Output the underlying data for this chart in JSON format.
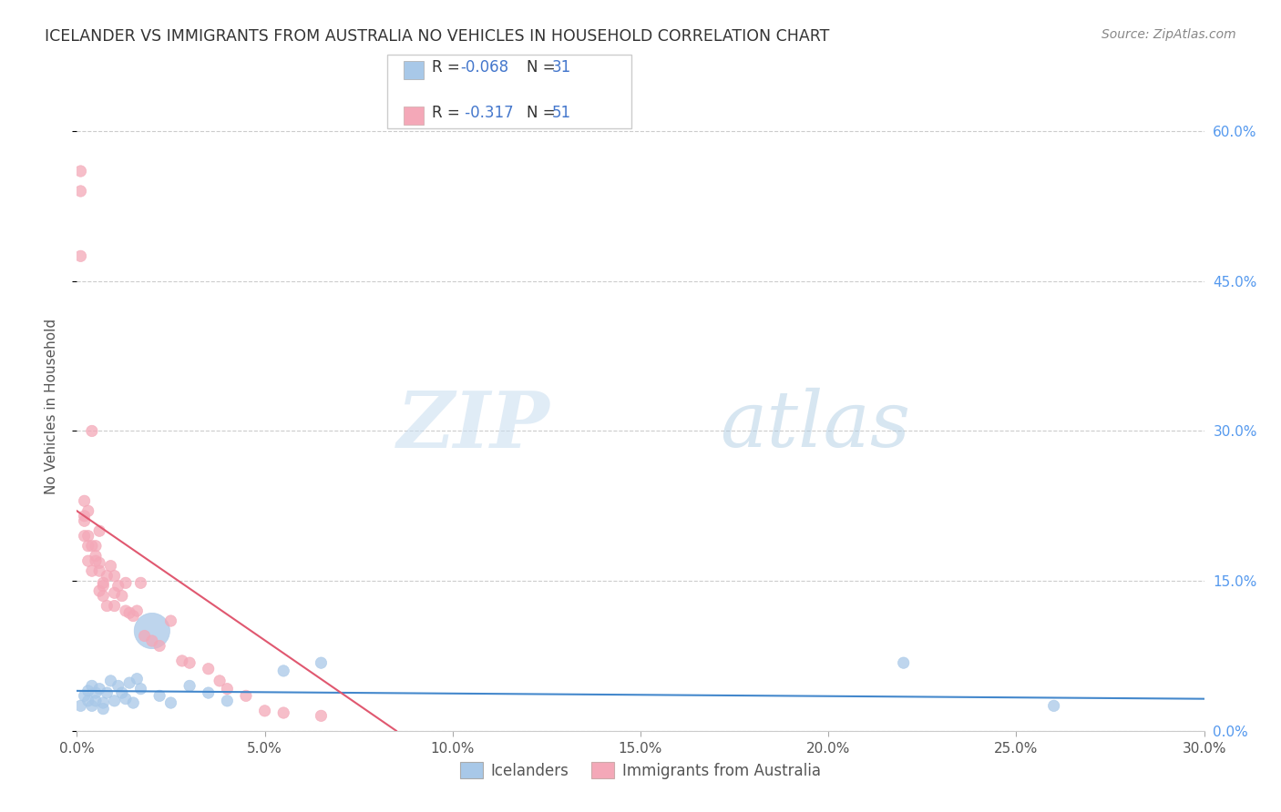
{
  "title": "ICELANDER VS IMMIGRANTS FROM AUSTRALIA NO VEHICLES IN HOUSEHOLD CORRELATION CHART",
  "source": "Source: ZipAtlas.com",
  "xlim": [
    0.0,
    0.3
  ],
  "ylim": [
    0.0,
    0.65
  ],
  "ylabel": "No Vehicles in Household",
  "watermark_zip": "ZIP",
  "watermark_atlas": "atlas",
  "legend_blue_r": "R = -0.068",
  "legend_blue_n": "N = 31",
  "legend_pink_r": "R =  -0.317",
  "legend_pink_n": "N = 51",
  "blue_color": "#A8C8E8",
  "pink_color": "#F4A8B8",
  "trendline_blue_color": "#4488CC",
  "trendline_pink_color": "#E05870",
  "legend_text_color": "#4477CC",
  "blue_scatter_x": [
    0.001,
    0.002,
    0.003,
    0.003,
    0.004,
    0.004,
    0.005,
    0.005,
    0.006,
    0.007,
    0.007,
    0.008,
    0.009,
    0.01,
    0.011,
    0.012,
    0.013,
    0.014,
    0.015,
    0.016,
    0.017,
    0.02,
    0.022,
    0.025,
    0.03,
    0.035,
    0.04,
    0.055,
    0.065,
    0.22,
    0.26
  ],
  "blue_scatter_y": [
    0.025,
    0.035,
    0.04,
    0.03,
    0.045,
    0.025,
    0.038,
    0.03,
    0.042,
    0.028,
    0.022,
    0.038,
    0.05,
    0.03,
    0.045,
    0.038,
    0.032,
    0.048,
    0.028,
    0.052,
    0.042,
    0.1,
    0.035,
    0.028,
    0.045,
    0.038,
    0.03,
    0.06,
    0.068,
    0.068,
    0.025
  ],
  "blue_scatter_s": [
    20,
    20,
    20,
    20,
    20,
    20,
    20,
    20,
    20,
    20,
    20,
    20,
    20,
    20,
    20,
    20,
    20,
    20,
    20,
    20,
    20,
    200,
    20,
    20,
    20,
    20,
    20,
    20,
    20,
    20,
    20
  ],
  "pink_scatter_x": [
    0.001,
    0.001,
    0.001,
    0.002,
    0.002,
    0.002,
    0.003,
    0.003,
    0.003,
    0.004,
    0.004,
    0.005,
    0.005,
    0.006,
    0.006,
    0.006,
    0.007,
    0.007,
    0.008,
    0.008,
    0.009,
    0.01,
    0.01,
    0.011,
    0.012,
    0.013,
    0.013,
    0.014,
    0.015,
    0.016,
    0.017,
    0.018,
    0.02,
    0.022,
    0.025,
    0.028,
    0.03,
    0.035,
    0.038,
    0.04,
    0.045,
    0.05,
    0.055,
    0.065,
    0.002,
    0.003,
    0.004,
    0.005,
    0.006,
    0.007,
    0.01
  ],
  "pink_scatter_y": [
    0.56,
    0.54,
    0.475,
    0.23,
    0.215,
    0.195,
    0.22,
    0.195,
    0.17,
    0.3,
    0.16,
    0.185,
    0.17,
    0.2,
    0.16,
    0.14,
    0.145,
    0.135,
    0.155,
    0.125,
    0.165,
    0.155,
    0.125,
    0.145,
    0.135,
    0.148,
    0.12,
    0.118,
    0.115,
    0.12,
    0.148,
    0.095,
    0.09,
    0.085,
    0.11,
    0.07,
    0.068,
    0.062,
    0.05,
    0.042,
    0.035,
    0.02,
    0.018,
    0.015,
    0.21,
    0.185,
    0.185,
    0.175,
    0.168,
    0.148,
    0.138
  ],
  "pink_scatter_s": [
    20,
    20,
    20,
    20,
    20,
    20,
    20,
    20,
    20,
    20,
    20,
    20,
    20,
    20,
    20,
    20,
    20,
    20,
    20,
    20,
    20,
    20,
    20,
    20,
    20,
    20,
    20,
    20,
    20,
    20,
    20,
    20,
    20,
    20,
    20,
    20,
    20,
    20,
    20,
    20,
    20,
    20,
    20,
    20,
    20,
    20,
    20,
    20,
    20,
    20,
    20
  ],
  "blue_trendline_x": [
    0.0,
    0.3
  ],
  "blue_trendline_y": [
    0.04,
    0.032
  ],
  "pink_trendline_x": [
    0.0,
    0.085
  ],
  "pink_trendline_y": [
    0.22,
    0.0
  ]
}
